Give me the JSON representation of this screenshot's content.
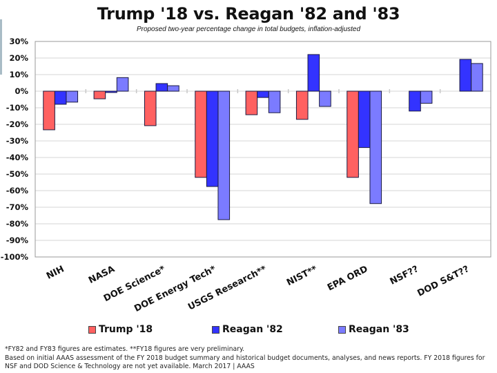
{
  "chart_data": {
    "type": "bar",
    "title": "Trump '18 vs. Reagan '82 and '83",
    "subtitle": "Proposed two-year percentage change in total budgets, inflation-adjusted",
    "xlabel": "",
    "ylabel": "",
    "ylim": [
      -100,
      30
    ],
    "yticks": [
      30,
      20,
      10,
      0,
      -10,
      -20,
      -30,
      -40,
      -50,
      -60,
      -70,
      -80,
      -90,
      -100
    ],
    "ytick_labels": [
      "30%",
      "20%",
      "10%",
      "0%",
      "-10%",
      "-20%",
      "-30%",
      "-40%",
      "-50%",
      "-60%",
      "-70%",
      "-80%",
      "-90%",
      "-100%"
    ],
    "grid": true,
    "legend_position": "bottom",
    "categories": [
      "NIH",
      "NASA",
      "DOE Science*",
      "DOE Energy Tech*",
      "USGS Research**",
      "NIST**",
      "EPA ORD",
      "NSF??",
      "DOD S&T??"
    ],
    "series": [
      {
        "name": "Trump '18",
        "color": "#ff6161",
        "values": [
          -23.3,
          -4.6,
          -20.8,
          -52.0,
          -14.2,
          -17.0,
          -52.0,
          null,
          null
        ]
      },
      {
        "name": "Reagan '82",
        "color": "#3333ff",
        "values": [
          -7.9,
          -0.8,
          4.6,
          -57.5,
          -3.8,
          22.1,
          -34.0,
          -12.0,
          19.2
        ]
      },
      {
        "name": "Reagan '83",
        "color": "#7b7bff",
        "values": [
          -6.6,
          8.2,
          3.3,
          -77.5,
          -13.0,
          -9.2,
          -67.8,
          -7.3,
          16.7
        ]
      }
    ]
  },
  "footnotes": [
    "*FY82 and FY83 figures are estimates. **FY18 figures are very preliminary.",
    "Based on initial AAAS assessment of the FY 2018 budget summary and historical budget documents, analyses, and news reports. FY 2018 figures for NSF and DOD Science & Technology are not yet available. March 2017 | AAAS"
  ]
}
